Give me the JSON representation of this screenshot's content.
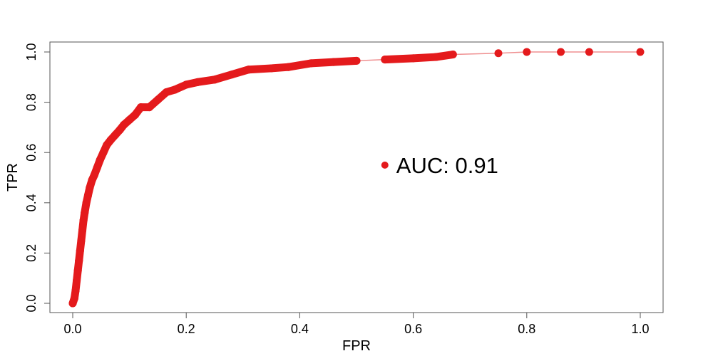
{
  "chart_data": {
    "type": "line",
    "title": "",
    "xlabel": "FPR",
    "ylabel": "TPR",
    "xlim": [
      0,
      1
    ],
    "ylim": [
      0,
      1
    ],
    "xticks": [
      {
        "value": 0.0,
        "label": "0.0"
      },
      {
        "value": 0.2,
        "label": "0.2"
      },
      {
        "value": 0.4,
        "label": "0.4"
      },
      {
        "value": 0.6,
        "label": "0.6"
      },
      {
        "value": 0.8,
        "label": "0.8"
      },
      {
        "value": 1.0,
        "label": "1.0"
      }
    ],
    "yticks": [
      {
        "value": 0.0,
        "label": "0.0"
      },
      {
        "value": 0.2,
        "label": "0.2"
      },
      {
        "value": 0.4,
        "label": "0.4"
      },
      {
        "value": 0.6,
        "label": "0.6"
      },
      {
        "value": 0.8,
        "label": "0.8"
      },
      {
        "value": 1.0,
        "label": "1.0"
      }
    ],
    "grid": false,
    "legend": "none",
    "series": [
      {
        "color": "#e41a1c",
        "points": [
          [
            0.0,
            0.0
          ],
          [
            0.003,
            0.02
          ],
          [
            0.005,
            0.05
          ],
          [
            0.007,
            0.09
          ],
          [
            0.009,
            0.13
          ],
          [
            0.011,
            0.17
          ],
          [
            0.013,
            0.21
          ],
          [
            0.015,
            0.25
          ],
          [
            0.017,
            0.29
          ],
          [
            0.019,
            0.33
          ],
          [
            0.021,
            0.36
          ],
          [
            0.024,
            0.4
          ],
          [
            0.027,
            0.43
          ],
          [
            0.03,
            0.46
          ],
          [
            0.034,
            0.49
          ],
          [
            0.038,
            0.51
          ],
          [
            0.043,
            0.54
          ],
          [
            0.048,
            0.57
          ],
          [
            0.054,
            0.6
          ],
          [
            0.06,
            0.63
          ],
          [
            0.067,
            0.65
          ],
          [
            0.075,
            0.67
          ],
          [
            0.083,
            0.69
          ],
          [
            0.09,
            0.71
          ],
          [
            0.1,
            0.73
          ],
          [
            0.11,
            0.75
          ],
          [
            0.12,
            0.78
          ],
          [
            0.135,
            0.78
          ],
          [
            0.15,
            0.81
          ],
          [
            0.165,
            0.84
          ],
          [
            0.18,
            0.85
          ],
          [
            0.2,
            0.87
          ],
          [
            0.22,
            0.88
          ],
          [
            0.25,
            0.89
          ],
          [
            0.28,
            0.91
          ],
          [
            0.31,
            0.93
          ],
          [
            0.35,
            0.935
          ],
          [
            0.38,
            0.94
          ],
          [
            0.42,
            0.955
          ],
          [
            0.46,
            0.96
          ],
          [
            0.5,
            0.965
          ],
          [
            0.55,
            0.97
          ],
          [
            0.6,
            0.975
          ],
          [
            0.64,
            0.98
          ],
          [
            0.67,
            0.99
          ],
          [
            0.75,
            0.995
          ],
          [
            0.8,
            1.0
          ],
          [
            0.86,
            1.0
          ],
          [
            0.91,
            1.0
          ],
          [
            1.0,
            1.0
          ]
        ]
      }
    ],
    "annotation": {
      "text": "AUC: 0.91",
      "x": 0.55,
      "y": 0.55
    }
  }
}
